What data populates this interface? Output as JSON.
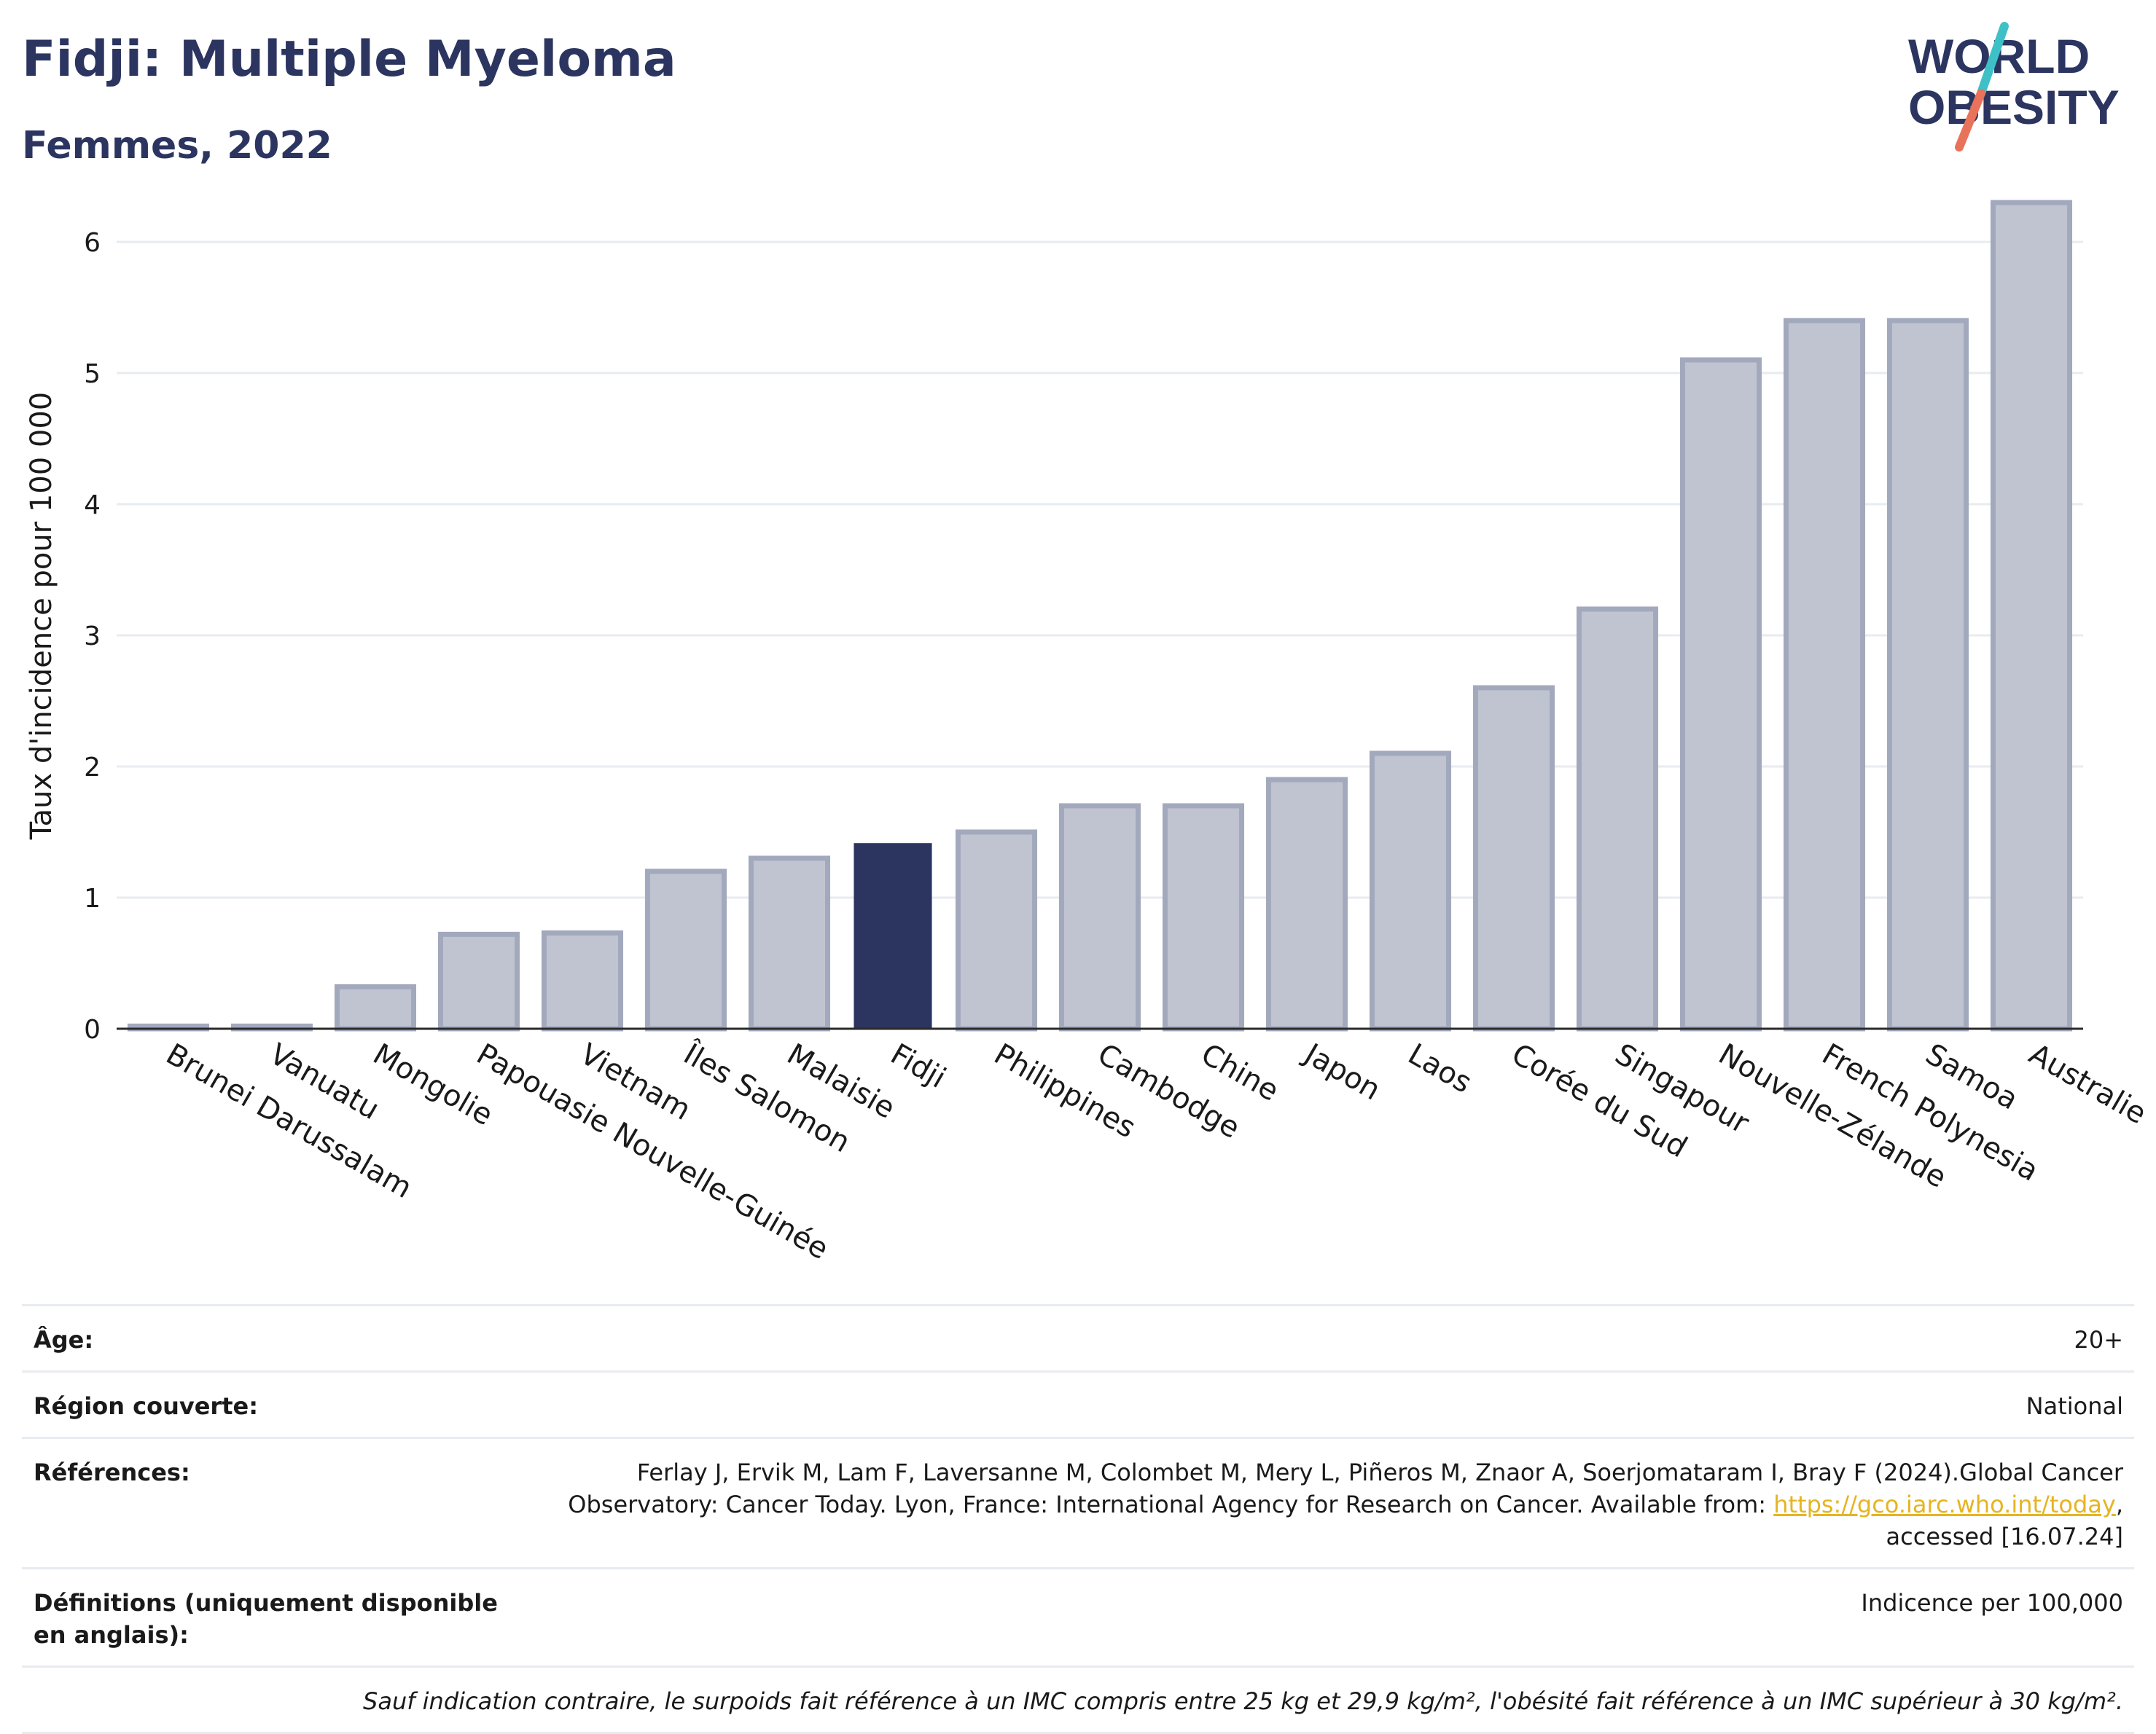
{
  "header": {
    "title": "Fidji: Multiple Myeloma",
    "subtitle": "Femmes, 2022"
  },
  "logo": {
    "line1": "WORLD",
    "line2": "OBESITY",
    "colors": {
      "text": "#2b3560",
      "slash_top": "#3ec1c6",
      "slash_bottom": "#e8735a"
    }
  },
  "colors": {
    "highlight": "#2b3560",
    "bar_fill": "#c0c4d0",
    "bar_stroke": "#a3a9bd",
    "grid": "#e8ebef",
    "axis": "#2a2a2a"
  },
  "chart_data": {
    "type": "bar",
    "title": "Fidji: Multiple Myeloma",
    "subtitle": "Femmes, 2022",
    "xlabel": "",
    "ylabel": "Taux d'incidence pour 100 000",
    "ylim": [
      0,
      6.4
    ],
    "yticks": [
      0,
      1,
      2,
      3,
      4,
      5,
      6
    ],
    "grid": true,
    "highlight": "Fidji",
    "categories": [
      "Brunei Darussalam",
      "Vanuatu",
      "Mongolie",
      "Papouasie Nouvelle-Guinée",
      "Vietnam",
      "Îles Salomon",
      "Malaisie",
      "Fidji",
      "Philippines",
      "Cambodge",
      "Chine",
      "Japon",
      "Laos",
      "Corée du Sud",
      "Singapour",
      "Nouvelle-Zélande",
      "French Polynesia",
      "Samoa",
      "Australie"
    ],
    "values": [
      0.02,
      0.02,
      0.32,
      0.72,
      0.73,
      1.2,
      1.3,
      1.41,
      1.5,
      1.7,
      1.7,
      1.9,
      2.1,
      2.6,
      3.2,
      5.1,
      5.4,
      5.4,
      6.3
    ]
  },
  "table": {
    "rows": [
      {
        "label": "Âge:",
        "value": "20+"
      },
      {
        "label": "Région couverte:",
        "value": "National"
      },
      {
        "label": "Références:",
        "value_line1": "Ferlay J, Ervik M, Lam F, Laversanne M, Colombet M, Mery L, Piñeros M, Znaor A, Soerjomataram I, Bray F (2024).Global Cancer",
        "value_line2_prefix": "Observatory: Cancer Today. Lyon, France: International Agency for Research on Cancer. Available from: ",
        "link_text": "https://gco.iarc.who.int/today",
        "value_line2_suffix": ",",
        "value_line3": "accessed [16.07.24]"
      },
      {
        "label": "Définitions (uniquement disponible en anglais):",
        "value": "Indicence per 100,000"
      }
    ],
    "note": "Sauf indication contraire, le surpoids fait référence à un IMC compris entre 25 kg et 29,9 kg/m², l'obésité fait référence à un IMC supérieur à 30 kg/m²."
  }
}
